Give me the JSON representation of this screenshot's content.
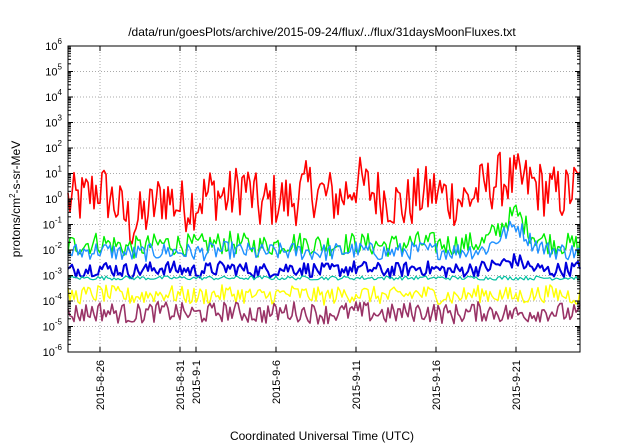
{
  "chart_data": {
    "type": "line",
    "title": "/data/run/goesPlots/archive/2015-09-24/flux/../flux/31daysMoonFluxes.txt",
    "xlabel": "Coordinated Universal Time (UTC)",
    "ylabel": "protons/cm²-s-sr-MeV",
    "ylabel_parts": {
      "pre": "protons/cm",
      "sup": "2",
      "post": "-s-sr-MeV"
    },
    "yscale": "log",
    "ylim": [
      1e-06,
      1000000.0
    ],
    "y_ticks": [
      {
        "base": "10",
        "exp": "-6",
        "value": 1e-06
      },
      {
        "base": "10",
        "exp": "-5",
        "value": 1e-05
      },
      {
        "base": "10",
        "exp": "-4",
        "value": 0.0001
      },
      {
        "base": "10",
        "exp": "-3",
        "value": 0.001
      },
      {
        "base": "10",
        "exp": "-2",
        "value": 0.01
      },
      {
        "base": "10",
        "exp": "-1",
        "value": 0.1
      },
      {
        "base": "10",
        "exp": "0",
        "value": 1
      },
      {
        "base": "10",
        "exp": "1",
        "value": 10
      },
      {
        "base": "10",
        "exp": "2",
        "value": 100
      },
      {
        "base": "10",
        "exp": "3",
        "value": 1000
      },
      {
        "base": "10",
        "exp": "4",
        "value": 10000
      },
      {
        "base": "10",
        "exp": "5",
        "value": 100000
      },
      {
        "base": "10",
        "exp": "6",
        "value": 1000000
      }
    ],
    "xlim": [
      "2015-08-24",
      "2015-09-25"
    ],
    "x_ticks": [
      "2015-8-26",
      "2015-8-31",
      "2015-9-1",
      "2015-9-6",
      "2015-9-11",
      "2015-9-16",
      "2015-9-21"
    ],
    "x_tick_dates": [
      "2015-08-26",
      "2015-08-31",
      "2015-09-01",
      "2015-09-06",
      "2015-09-11",
      "2015-09-16",
      "2015-09-21"
    ],
    "grid": true,
    "series": [
      {
        "color": "#ff0000",
        "points": [
          [
            "2015-08-24",
            0.8
          ],
          [
            "2015-08-25",
            1.0
          ],
          [
            "2015-08-26",
            3.0
          ],
          [
            "2015-08-27",
            0.6
          ],
          [
            "2015-08-28",
            0.1
          ],
          [
            "2015-08-29",
            0.3
          ],
          [
            "2015-08-30",
            1.5
          ],
          [
            "2015-08-31",
            0.5
          ],
          [
            "2015-09-01",
            0.8
          ],
          [
            "2015-09-02",
            2.0
          ],
          [
            "2015-09-03",
            1.0
          ],
          [
            "2015-09-04",
            4.0
          ],
          [
            "2015-09-05",
            0.5
          ],
          [
            "2015-09-06",
            1.0
          ],
          [
            "2015-09-07",
            0.8
          ],
          [
            "2015-09-08",
            3.0
          ],
          [
            "2015-09-09",
            1.5
          ],
          [
            "2015-09-10",
            1.0
          ],
          [
            "2015-09-11",
            5.0
          ],
          [
            "2015-09-12",
            2.0
          ],
          [
            "2015-09-13",
            1.0
          ],
          [
            "2015-09-14",
            0.5
          ],
          [
            "2015-09-15",
            1.5
          ],
          [
            "2015-09-16",
            2.0
          ],
          [
            "2015-09-17",
            1.0
          ],
          [
            "2015-09-18",
            1.0
          ],
          [
            "2015-09-19",
            3.0
          ],
          [
            "2015-09-20",
            6.0
          ],
          [
            "2015-09-21",
            5.0
          ],
          [
            "2015-09-22",
            4.0
          ],
          [
            "2015-09-23",
            2.0
          ],
          [
            "2015-09-24",
            1.5
          ],
          [
            "2015-09-25",
            4.0
          ]
        ]
      },
      {
        "color": "#00ee00",
        "points": [
          [
            "2015-08-24",
            0.015
          ],
          [
            "2015-08-26",
            0.02
          ],
          [
            "2015-08-28",
            0.012
          ],
          [
            "2015-08-30",
            0.018
          ],
          [
            "2015-09-01",
            0.015
          ],
          [
            "2015-09-03",
            0.02
          ],
          [
            "2015-09-05",
            0.014
          ],
          [
            "2015-09-07",
            0.02
          ],
          [
            "2015-09-09",
            0.016
          ],
          [
            "2015-09-11",
            0.018
          ],
          [
            "2015-09-13",
            0.015
          ],
          [
            "2015-09-15",
            0.02
          ],
          [
            "2015-09-17",
            0.016
          ],
          [
            "2015-09-19",
            0.02
          ],
          [
            "2015-09-21",
            0.3
          ],
          [
            "2015-09-22",
            0.04
          ],
          [
            "2015-09-23",
            0.02
          ],
          [
            "2015-09-25",
            0.015
          ]
        ]
      },
      {
        "color": "#1e90ff",
        "points": [
          [
            "2015-08-24",
            0.008
          ],
          [
            "2015-08-26",
            0.01
          ],
          [
            "2015-08-28",
            0.007
          ],
          [
            "2015-08-30",
            0.009
          ],
          [
            "2015-09-01",
            0.008
          ],
          [
            "2015-09-03",
            0.01
          ],
          [
            "2015-09-05",
            0.008
          ],
          [
            "2015-09-07",
            0.009
          ],
          [
            "2015-09-09",
            0.008
          ],
          [
            "2015-09-11",
            0.01
          ],
          [
            "2015-09-13",
            0.008
          ],
          [
            "2015-09-15",
            0.01
          ],
          [
            "2015-09-17",
            0.009
          ],
          [
            "2015-09-19",
            0.01
          ],
          [
            "2015-09-21",
            0.1
          ],
          [
            "2015-09-22",
            0.02
          ],
          [
            "2015-09-23",
            0.01
          ],
          [
            "2015-09-25",
            0.008
          ]
        ]
      },
      {
        "color": "#0000dd",
        "points": [
          [
            "2015-08-24",
            0.0015
          ],
          [
            "2015-08-26",
            0.002
          ],
          [
            "2015-08-28",
            0.0015
          ],
          [
            "2015-08-30",
            0.002
          ],
          [
            "2015-09-01",
            0.0015
          ],
          [
            "2015-09-03",
            0.002
          ],
          [
            "2015-09-05",
            0.0015
          ],
          [
            "2015-09-07",
            0.002
          ],
          [
            "2015-09-09",
            0.0015
          ],
          [
            "2015-09-11",
            0.002
          ],
          [
            "2015-09-13",
            0.0015
          ],
          [
            "2015-09-15",
            0.002
          ],
          [
            "2015-09-17",
            0.0015
          ],
          [
            "2015-09-19",
            0.002
          ],
          [
            "2015-09-21",
            0.004
          ],
          [
            "2015-09-22",
            0.002
          ],
          [
            "2015-09-23",
            0.0015
          ],
          [
            "2015-09-25",
            0.002
          ]
        ]
      },
      {
        "color": "#00c0a0",
        "points": [
          [
            "2015-08-24",
            0.0008
          ],
          [
            "2015-08-28",
            0.0008
          ],
          [
            "2015-09-01",
            0.0008
          ],
          [
            "2015-09-05",
            0.0008
          ],
          [
            "2015-09-09",
            0.0008
          ],
          [
            "2015-09-13",
            0.0008
          ],
          [
            "2015-09-17",
            0.0008
          ],
          [
            "2015-09-21",
            0.0008
          ],
          [
            "2015-09-25",
            0.0008
          ]
        ]
      },
      {
        "color": "#ffff00",
        "points": [
          [
            "2015-08-24",
            0.00015
          ],
          [
            "2015-08-26",
            0.0002
          ],
          [
            "2015-08-28",
            0.00015
          ],
          [
            "2015-08-30",
            0.0002
          ],
          [
            "2015-09-01",
            0.00015
          ],
          [
            "2015-09-03",
            0.0002
          ],
          [
            "2015-09-05",
            0.00015
          ],
          [
            "2015-09-07",
            0.0002
          ],
          [
            "2015-09-09",
            0.00015
          ],
          [
            "2015-09-11",
            0.0002
          ],
          [
            "2015-09-13",
            0.00015
          ],
          [
            "2015-09-15",
            0.0002
          ],
          [
            "2015-09-17",
            0.00015
          ],
          [
            "2015-09-19",
            0.0002
          ],
          [
            "2015-09-21",
            0.00015
          ],
          [
            "2015-09-23",
            0.0002
          ],
          [
            "2015-09-25",
            0.00015
          ]
        ]
      },
      {
        "color": "#993366",
        "points": [
          [
            "2015-08-24",
            3e-05
          ],
          [
            "2015-08-26",
            4e-05
          ],
          [
            "2015-08-28",
            3e-05
          ],
          [
            "2015-08-30",
            4e-05
          ],
          [
            "2015-09-01",
            3e-05
          ],
          [
            "2015-09-03",
            4e-05
          ],
          [
            "2015-09-05",
            3e-05
          ],
          [
            "2015-09-07",
            4e-05
          ],
          [
            "2015-09-09",
            3e-05
          ],
          [
            "2015-09-11",
            4e-05
          ],
          [
            "2015-09-13",
            3e-05
          ],
          [
            "2015-09-15",
            4e-05
          ],
          [
            "2015-09-17",
            3e-05
          ],
          [
            "2015-09-19",
            4e-05
          ],
          [
            "2015-09-21",
            3e-05
          ],
          [
            "2015-09-23",
            4e-05
          ],
          [
            "2015-09-25",
            3e-05
          ]
        ]
      }
    ]
  }
}
